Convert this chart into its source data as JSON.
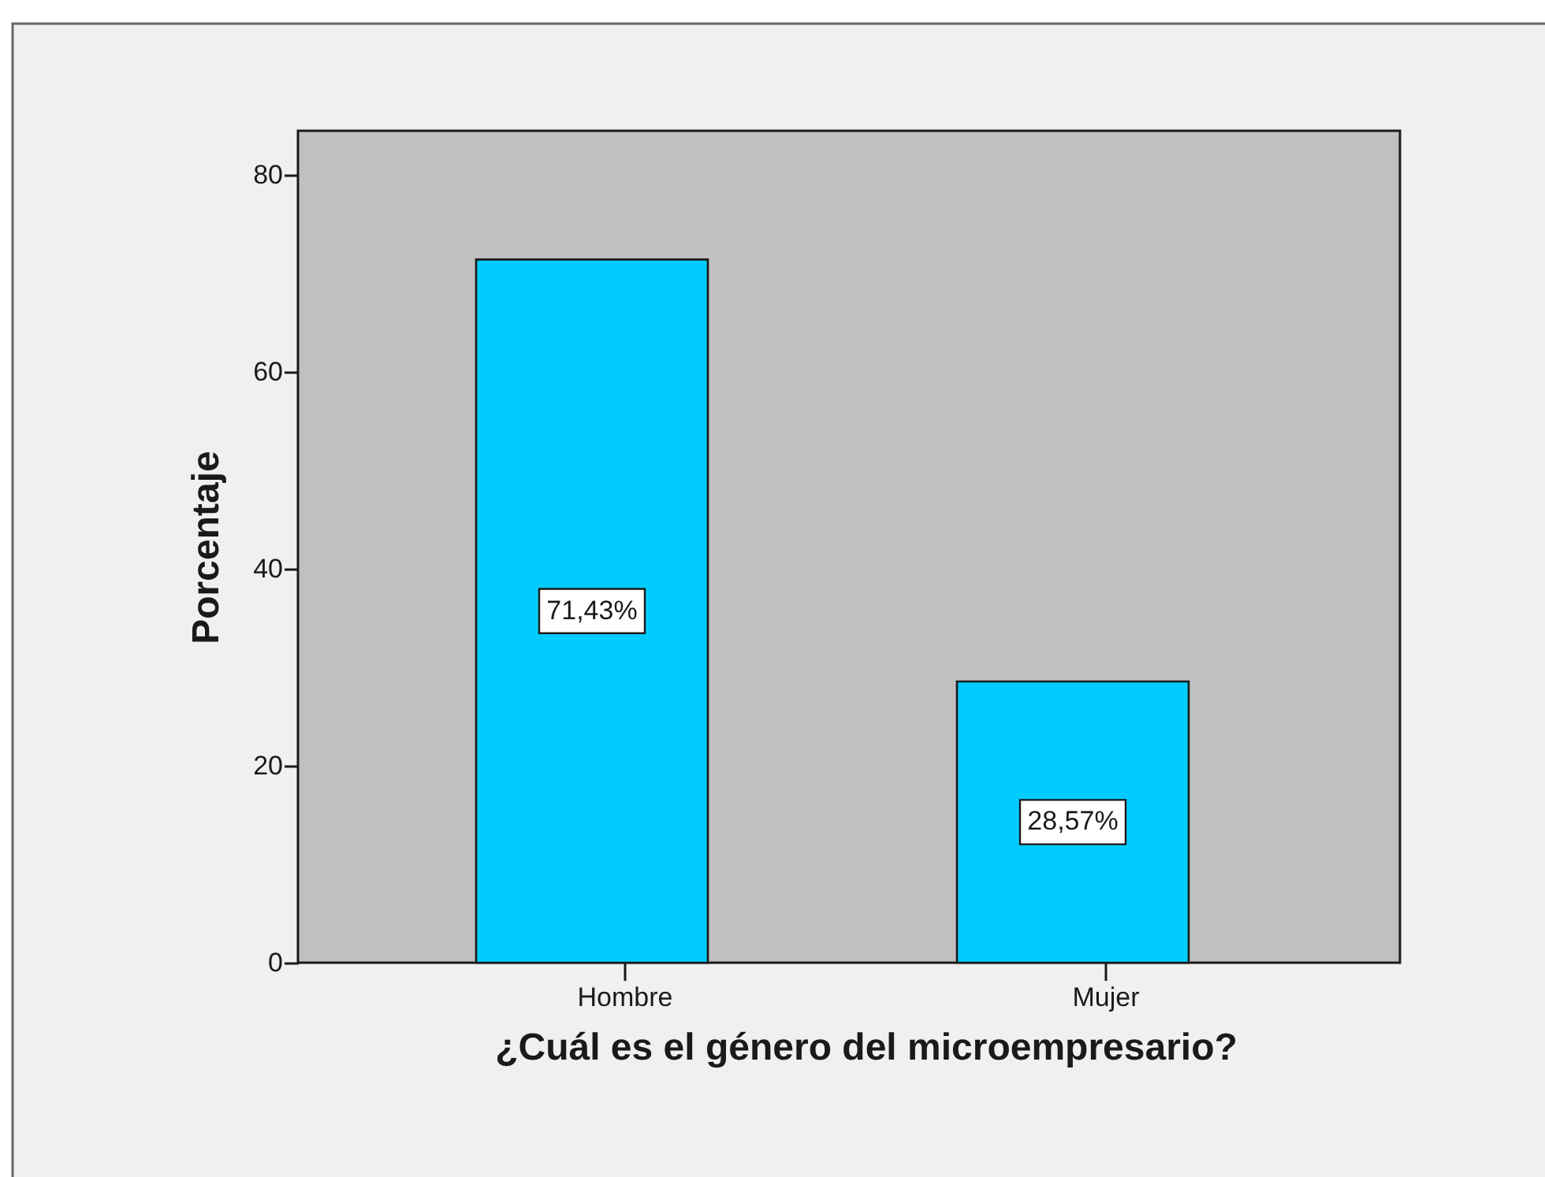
{
  "chart_data": {
    "type": "bar",
    "xlabel": "¿Cuál es el género del microempresario?",
    "ylabel": "Porcentaje",
    "categories": [
      "Hombre",
      "Mujer"
    ],
    "values": [
      71.43,
      28.57
    ],
    "color": "#00ccff",
    "value_labels": [
      "71,43%",
      "28,57%"
    ],
    "ylim": [
      0,
      84.5
    ],
    "yticks": [
      0,
      20,
      40,
      60,
      80
    ],
    "grid": false
  }
}
